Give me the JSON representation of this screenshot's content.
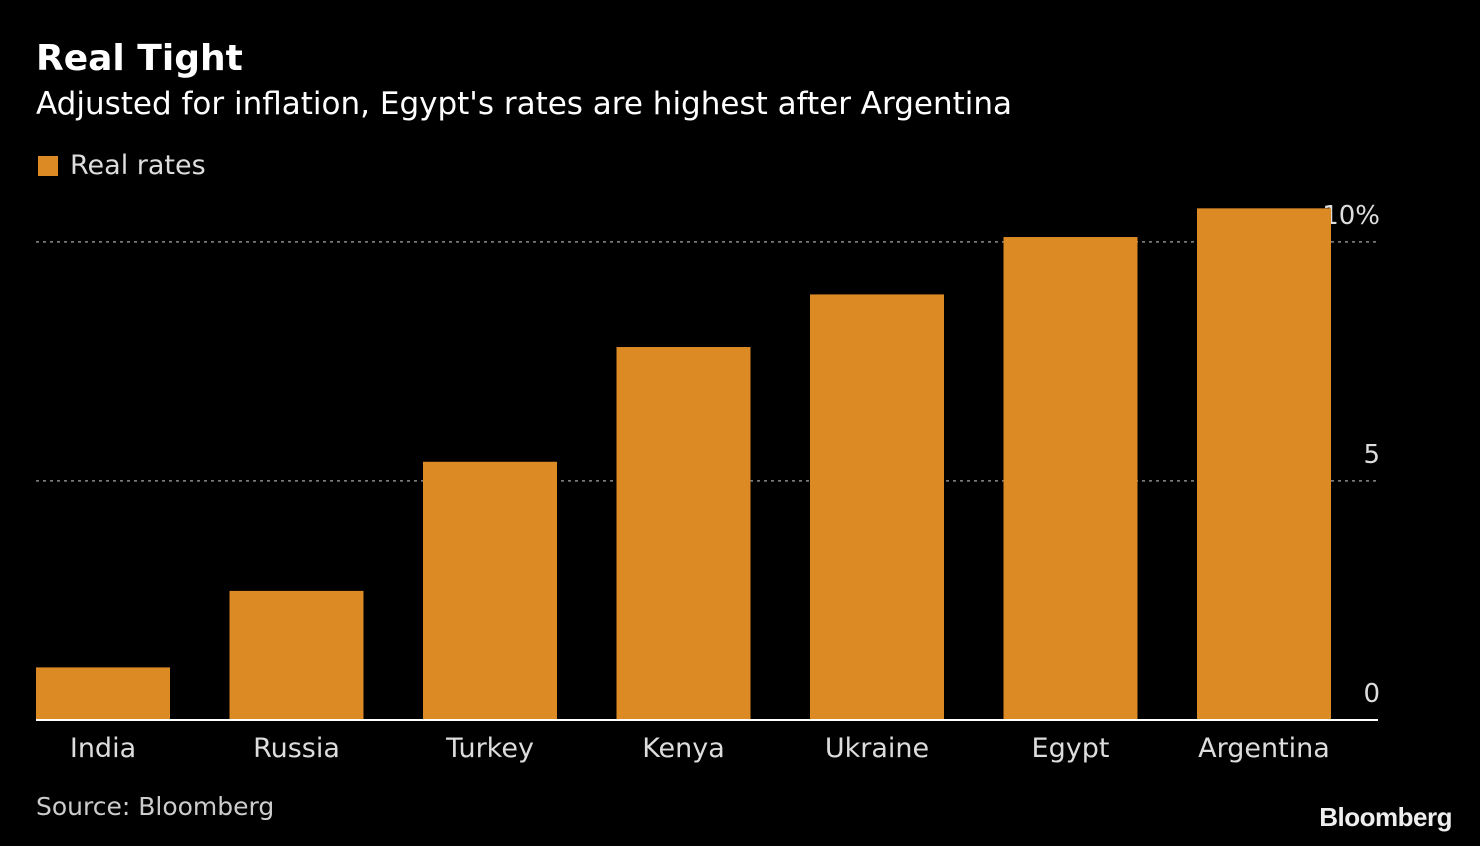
{
  "header": {
    "title": "Real Tight",
    "subtitle": "Adjusted for inflation, Egypt's rates are highest after Argentina"
  },
  "footer": {
    "source": "Source: Bloomberg",
    "logo": "Bloomberg"
  },
  "colors": {
    "bar": "#dc8a24",
    "background": "#000000",
    "grid": "#8a8a8a",
    "axis": "#ffffff"
  },
  "chart_data": {
    "type": "bar",
    "categories": [
      "India",
      "Russia",
      "Turkey",
      "Kenya",
      "Ukraine",
      "Egypt",
      "Argentina"
    ],
    "series": [
      {
        "name": "Real rates",
        "values": [
          1.1,
          2.7,
          5.4,
          7.8,
          8.9,
          10.1,
          10.7
        ]
      }
    ],
    "ylim": [
      0,
      11
    ],
    "yticks": [
      {
        "value": 0,
        "label": "0"
      },
      {
        "value": 5,
        "label": "5"
      },
      {
        "value": 10,
        "label": "10%"
      }
    ],
    "grid": true,
    "legend_position": "top-left",
    "y_axis_side": "right"
  }
}
